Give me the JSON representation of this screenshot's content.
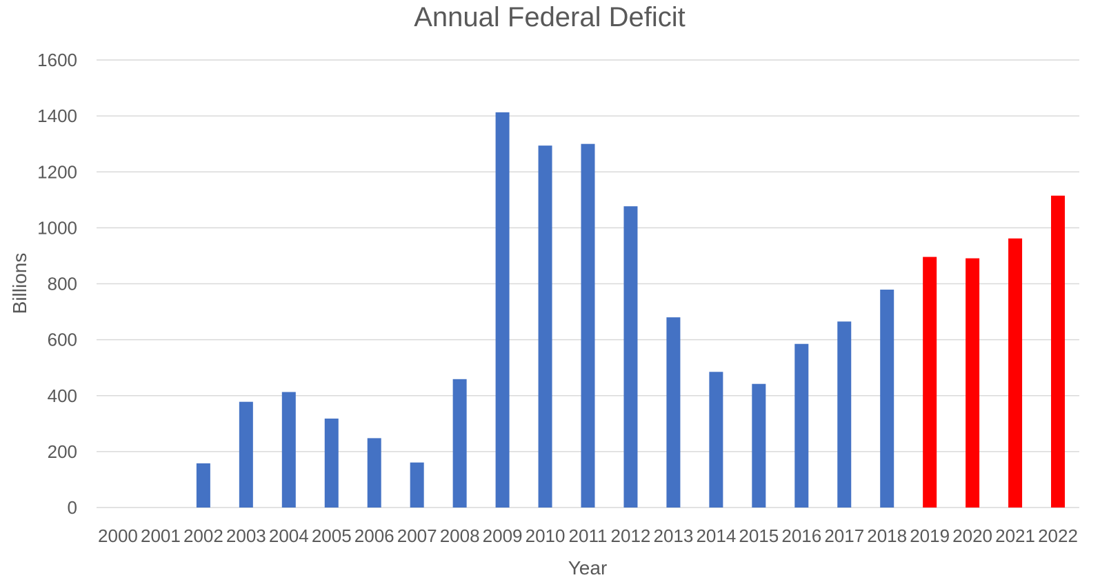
{
  "chart_data": {
    "type": "bar",
    "title": "Annual Federal Deficit",
    "xlabel": "Year",
    "ylabel": "Billions",
    "ylim": [
      0,
      1600
    ],
    "yticks": [
      0,
      200,
      400,
      600,
      800,
      1000,
      1200,
      1400,
      1600
    ],
    "grid": true,
    "legend": "none",
    "categories": [
      "2000",
      "2001",
      "2002",
      "2003",
      "2004",
      "2005",
      "2006",
      "2007",
      "2008",
      "2009",
      "2010",
      "2011",
      "2012",
      "2013",
      "2014",
      "2015",
      "2016",
      "2017",
      "2018",
      "2019",
      "2020",
      "2021",
      "2022"
    ],
    "values": [
      0,
      0,
      158,
      378,
      413,
      318,
      248,
      161,
      459,
      1413,
      1294,
      1300,
      1077,
      680,
      485,
      442,
      585,
      665,
      779,
      896,
      891,
      962,
      1115
    ],
    "colors": {
      "primary": "#4472c4",
      "highlight": "#ff0000",
      "text": "#595959",
      "grid": "#d9d9d9"
    },
    "highlight_categories": [
      "2019",
      "2020",
      "2021",
      "2022"
    ]
  }
}
